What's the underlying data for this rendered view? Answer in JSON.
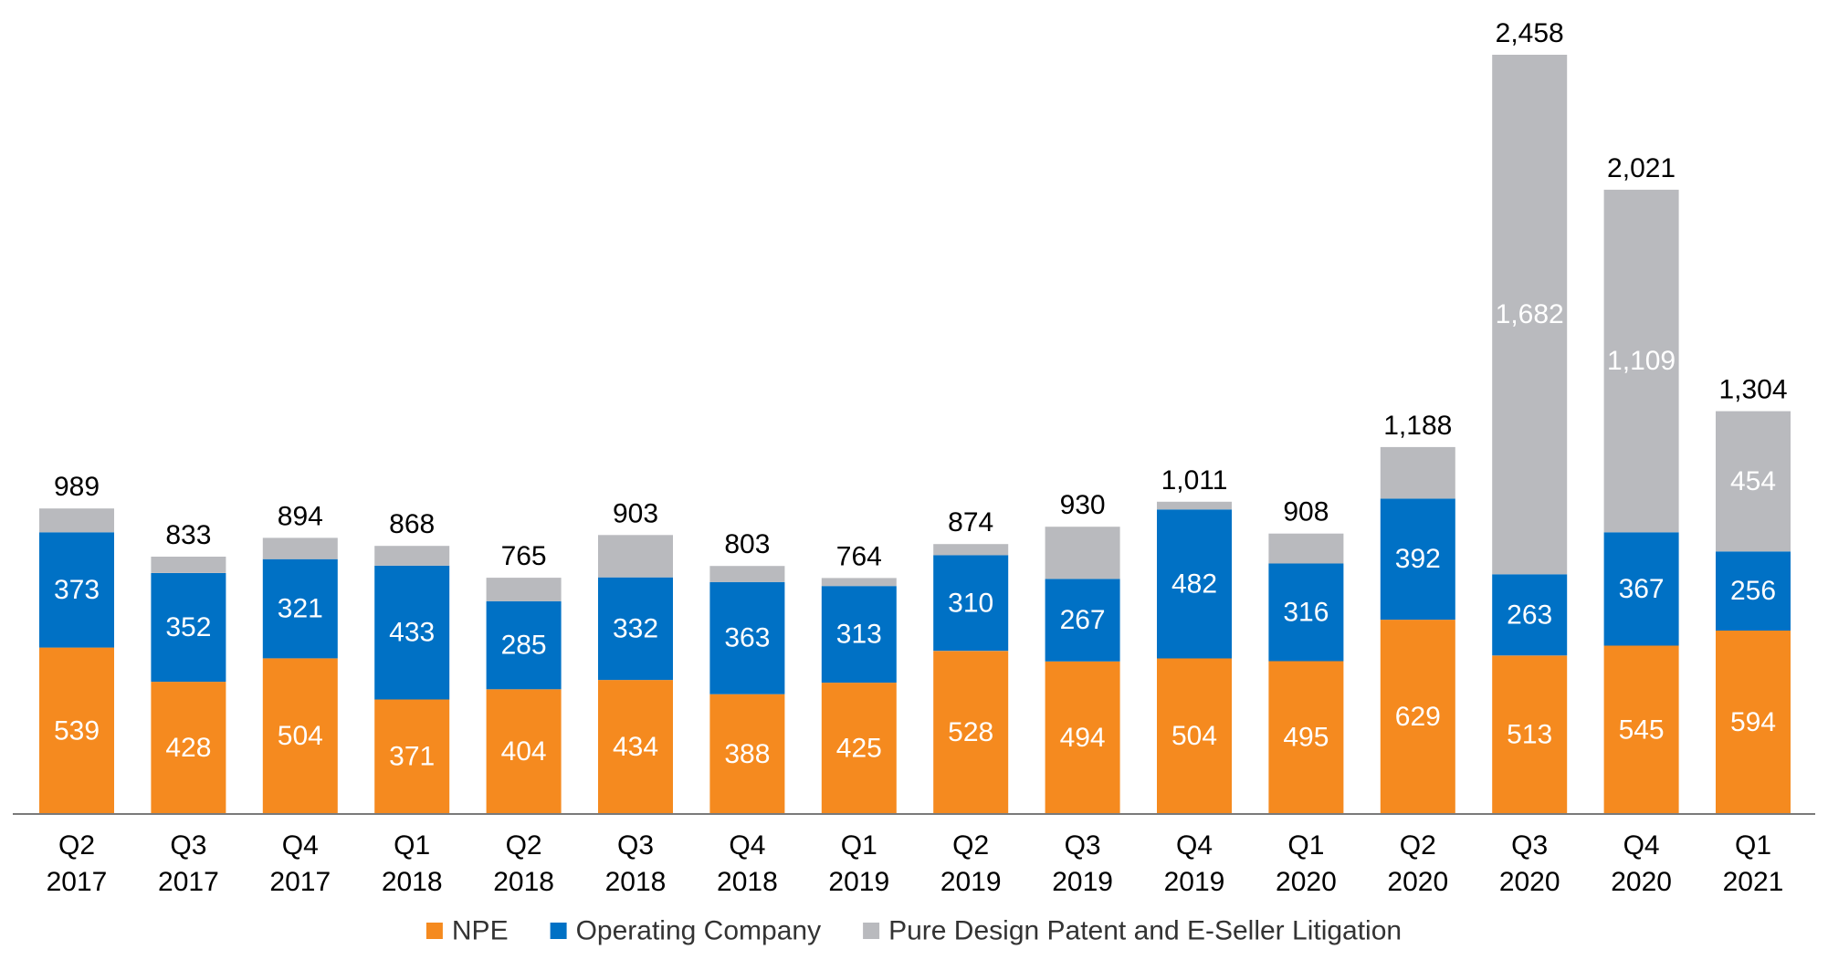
{
  "chart_data": {
    "type": "bar",
    "stacked": true,
    "categories": [
      [
        "Q2",
        "2017"
      ],
      [
        "Q3",
        "2017"
      ],
      [
        "Q4",
        "2017"
      ],
      [
        "Q1",
        "2018"
      ],
      [
        "Q2",
        "2018"
      ],
      [
        "Q3",
        "2018"
      ],
      [
        "Q4",
        "2018"
      ],
      [
        "Q1",
        "2019"
      ],
      [
        "Q2",
        "2019"
      ],
      [
        "Q3",
        "2019"
      ],
      [
        "Q4",
        "2019"
      ],
      [
        "Q1",
        "2020"
      ],
      [
        "Q2",
        "2020"
      ],
      [
        "Q3",
        "2020"
      ],
      [
        "Q4",
        "2020"
      ],
      [
        "Q1",
        "2021"
      ]
    ],
    "series": [
      {
        "name": "NPE",
        "color": "#f58a1f",
        "values": [
          539,
          428,
          504,
          371,
          404,
          434,
          388,
          425,
          528,
          494,
          504,
          495,
          629,
          513,
          545,
          594
        ],
        "labels": [
          "539",
          "428",
          "504",
          "371",
          "404",
          "434",
          "388",
          "425",
          "528",
          "494",
          "504",
          "495",
          "629",
          "513",
          "545",
          "594"
        ]
      },
      {
        "name": "Operating Company",
        "color": "#0071c5",
        "values": [
          373,
          352,
          321,
          433,
          285,
          332,
          363,
          313,
          310,
          267,
          482,
          316,
          392,
          263,
          367,
          256
        ],
        "labels": [
          "373",
          "352",
          "321",
          "433",
          "285",
          "332",
          "363",
          "313",
          "310",
          "267",
          "482",
          "316",
          "392",
          "263",
          "367",
          "256"
        ]
      },
      {
        "name": "Pure Design Patent and E-Seller Litigation",
        "color": "#b9babe",
        "values": [
          77,
          53,
          69,
          64,
          76,
          137,
          52,
          26,
          36,
          169,
          25,
          97,
          167,
          1682,
          1109,
          454
        ],
        "labels": [
          "",
          "",
          "",
          "",
          "",
          "",
          "",
          "",
          "",
          "",
          "",
          "",
          "",
          "1,682",
          "1,109",
          "454"
        ]
      }
    ],
    "totals": [
      989,
      833,
      894,
      868,
      765,
      903,
      803,
      764,
      874,
      930,
      1011,
      908,
      1188,
      2458,
      2021,
      1304
    ],
    "total_labels": [
      "989",
      "833",
      "894",
      "868",
      "765",
      "903",
      "803",
      "764",
      "874",
      "930",
      "1,011",
      "908",
      "1,188",
      "2,458",
      "2,021",
      "1,304"
    ],
    "title": "",
    "xlabel": "",
    "ylabel": "",
    "ylim": [
      0,
      2458
    ],
    "grid": false,
    "legend": "bottom-center"
  }
}
